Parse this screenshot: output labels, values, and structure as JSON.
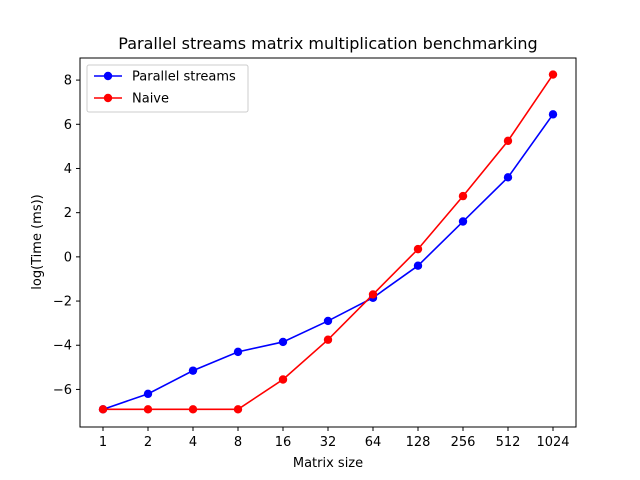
{
  "chart_data": {
    "type": "line",
    "title": "Parallel streams matrix multiplication benchmarking",
    "xlabel": "Matrix size",
    "ylabel": "log(Time (ms))",
    "categories": [
      "1",
      "2",
      "4",
      "8",
      "16",
      "32",
      "64",
      "128",
      "256",
      "512",
      "1024"
    ],
    "ylim": [
      -7.7,
      9.0
    ],
    "yticks": [
      -6,
      -4,
      -2,
      0,
      2,
      4,
      6,
      8
    ],
    "ytick_labels": [
      "−6",
      "−4",
      "−2",
      "0",
      "2",
      "4",
      "6",
      "8"
    ],
    "grid": false,
    "legend_position": "top-left",
    "series": [
      {
        "name": "Parallel streams",
        "color": "#0000ff",
        "values": [
          -6.9,
          -6.2,
          -5.15,
          -4.3,
          -3.85,
          -2.9,
          -1.85,
          -0.4,
          1.6,
          3.6,
          6.45
        ]
      },
      {
        "name": "Naive",
        "color": "#ff0000",
        "values": [
          -6.9,
          -6.9,
          -6.9,
          -6.9,
          -5.55,
          -3.75,
          -1.7,
          0.35,
          2.75,
          5.25,
          8.25
        ]
      }
    ]
  }
}
